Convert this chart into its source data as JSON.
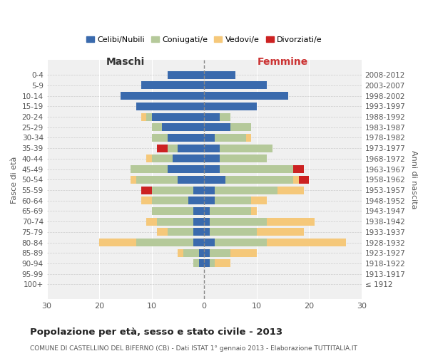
{
  "age_groups": [
    "100+",
    "95-99",
    "90-94",
    "85-89",
    "80-84",
    "75-79",
    "70-74",
    "65-69",
    "60-64",
    "55-59",
    "50-54",
    "45-49",
    "40-44",
    "35-39",
    "30-34",
    "25-29",
    "20-24",
    "15-19",
    "10-14",
    "5-9",
    "0-4"
  ],
  "birth_years": [
    "≤ 1912",
    "1913-1917",
    "1918-1922",
    "1923-1927",
    "1928-1932",
    "1933-1937",
    "1938-1942",
    "1943-1947",
    "1948-1952",
    "1953-1957",
    "1958-1962",
    "1963-1967",
    "1968-1972",
    "1973-1977",
    "1978-1982",
    "1983-1987",
    "1988-1992",
    "1993-1997",
    "1998-2002",
    "2003-2007",
    "2008-2012"
  ],
  "males": {
    "celibe": [
      0,
      0,
      1,
      1,
      2,
      2,
      2,
      2,
      3,
      2,
      5,
      7,
      6,
      5,
      7,
      8,
      10,
      13,
      16,
      12,
      7
    ],
    "coniugato": [
      0,
      0,
      1,
      3,
      11,
      5,
      7,
      8,
      7,
      8,
      8,
      7,
      4,
      2,
      3,
      2,
      1,
      0,
      0,
      0,
      0
    ],
    "vedovo": [
      0,
      0,
      0,
      1,
      7,
      2,
      2,
      0,
      2,
      0,
      1,
      0,
      1,
      0,
      0,
      0,
      1,
      0,
      0,
      0,
      0
    ],
    "divorziato": [
      0,
      0,
      0,
      0,
      0,
      0,
      0,
      0,
      0,
      2,
      0,
      0,
      0,
      2,
      0,
      0,
      0,
      0,
      0,
      0,
      0
    ]
  },
  "females": {
    "nubile": [
      0,
      0,
      1,
      1,
      2,
      1,
      1,
      1,
      2,
      2,
      4,
      3,
      3,
      3,
      2,
      5,
      3,
      10,
      16,
      12,
      6
    ],
    "coniugata": [
      0,
      0,
      1,
      4,
      10,
      9,
      11,
      8,
      7,
      12,
      13,
      14,
      9,
      10,
      6,
      4,
      2,
      0,
      0,
      0,
      0
    ],
    "vedova": [
      0,
      0,
      3,
      5,
      15,
      9,
      9,
      1,
      3,
      5,
      1,
      0,
      0,
      0,
      1,
      0,
      0,
      0,
      0,
      0,
      0
    ],
    "divorziata": [
      0,
      0,
      0,
      0,
      0,
      0,
      0,
      0,
      0,
      0,
      2,
      2,
      0,
      0,
      0,
      0,
      0,
      0,
      0,
      0,
      0
    ]
  },
  "colors": {
    "celibe": "#3a6aad",
    "coniugato": "#b5c99a",
    "vedovo": "#f5c87a",
    "divorziato": "#cc2222"
  },
  "xlim": 30,
  "title": "Popolazione per età, sesso e stato civile - 2013",
  "subtitle": "COMUNE DI CASTELLINO DEL BIFERNO (CB) - Dati ISTAT 1° gennaio 2013 - Elaborazione TUTTITALIA.IT",
  "ylabel_left": "Fasce di età",
  "ylabel_right": "Anni di nascita",
  "xlabel_left": "Maschi",
  "xlabel_right": "Femmine",
  "legend_labels": [
    "Celibi/Nubili",
    "Coniugati/e",
    "Vedovi/e",
    "Divorziati/e"
  ]
}
